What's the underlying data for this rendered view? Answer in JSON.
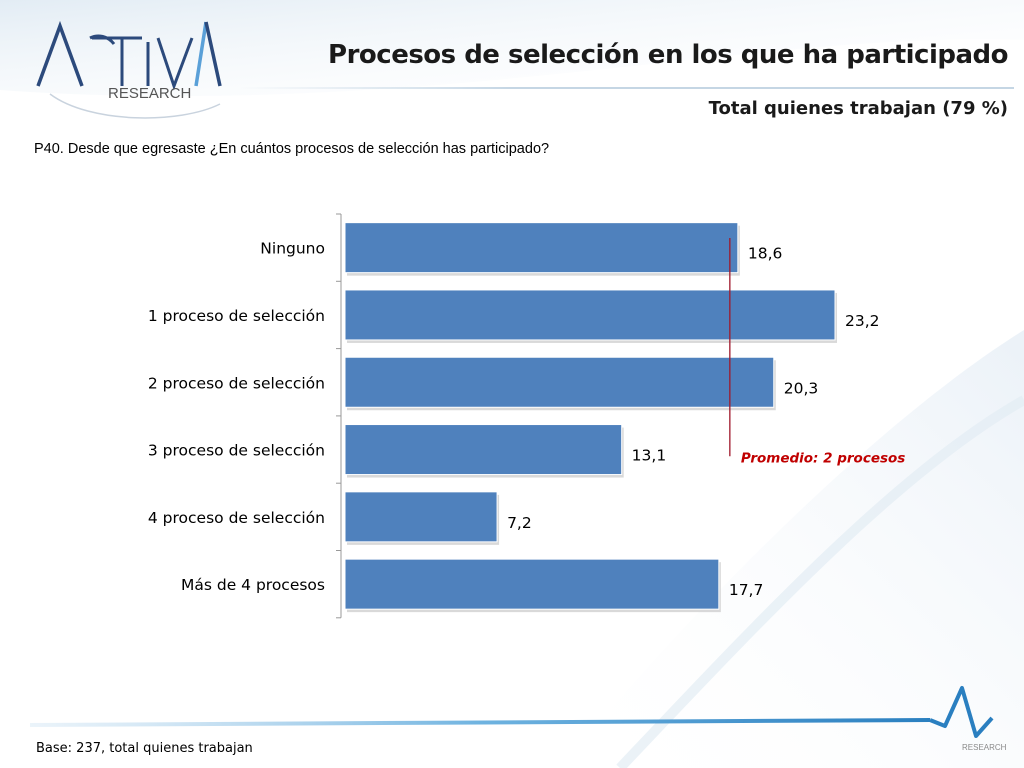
{
  "header": {
    "logo_main": "ACTIVA",
    "logo_sub": "RESEARCH",
    "title": "Procesos de selección en los que ha participado",
    "subtitle": "Total quienes trabajan (79 %)"
  },
  "question": "P40. Desde que egresaste ¿En cuántos procesos de selección has participado?",
  "footer": {
    "base": "Base: 237, total quienes trabajan",
    "logo_small": "RESEARCH"
  },
  "colors": {
    "bar": "#4f81bd",
    "average_line": "#a0182a",
    "average_text": "#c00000"
  },
  "chart_data": {
    "type": "bar",
    "orientation": "horizontal",
    "categories": [
      "Ninguno",
      "1 proceso de selección",
      "2 proceso de selección",
      "3 proceso de selección",
      "4 proceso de selección",
      "Más de 4 procesos"
    ],
    "values": [
      18.6,
      23.2,
      20.3,
      13.1,
      7.2,
      17.7
    ],
    "value_labels": [
      "18,6",
      "23,2",
      "20,3",
      "13,1",
      "7,2",
      "17,7"
    ],
    "xlim": [
      0,
      23.2
    ],
    "grid": false,
    "annotation": {
      "label": "Promedio: 2 procesos",
      "value": 18.6
    }
  }
}
